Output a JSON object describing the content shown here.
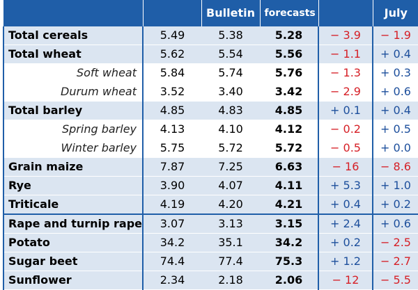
{
  "header": {
    "crop": "",
    "col1": "",
    "col2": "Bulletin",
    "col3": "forecasts",
    "col4": "",
    "col5": "July"
  },
  "rows": [
    {
      "crop": "Total cereals",
      "kind": "total",
      "v1": "5.49",
      "v2": "5.38",
      "v3": "5.28",
      "d1": "− 3.9",
      "d1s": "neg",
      "d2": "− 1.9",
      "d2s": "neg"
    },
    {
      "crop": "Total wheat",
      "kind": "total",
      "v1": "5.62",
      "v2": "5.54",
      "v3": "5.56",
      "d1": "− 1.1",
      "d1s": "neg",
      "d2": "+ 0.4",
      "d2s": "pos"
    },
    {
      "crop": "Soft wheat",
      "kind": "sub",
      "v1": "5.84",
      "v2": "5.74",
      "v3": "5.76",
      "d1": "− 1.3",
      "d1s": "neg",
      "d2": "+ 0.3",
      "d2s": "pos"
    },
    {
      "crop": "Durum wheat",
      "kind": "sub",
      "v1": "3.52",
      "v2": "3.40",
      "v3": "3.42",
      "d1": "− 2.9",
      "d1s": "neg",
      "d2": "+ 0.6",
      "d2s": "pos"
    },
    {
      "crop": "Total barley",
      "kind": "total",
      "v1": "4.85",
      "v2": "4.83",
      "v3": "4.85",
      "d1": "+ 0.1",
      "d1s": "pos",
      "d2": "+ 0.4",
      "d2s": "pos"
    },
    {
      "crop": "Spring barley",
      "kind": "sub",
      "v1": "4.13",
      "v2": "4.10",
      "v3": "4.12",
      "d1": "− 0.2",
      "d1s": "neg",
      "d2": "+ 0.5",
      "d2s": "pos"
    },
    {
      "crop": "Winter barley",
      "kind": "sub",
      "v1": "5.75",
      "v2": "5.72",
      "v3": "5.72",
      "d1": "− 0.5",
      "d1s": "neg",
      "d2": "+ 0.0",
      "d2s": "pos"
    },
    {
      "crop": "Grain maize",
      "kind": "total",
      "v1": "7.87",
      "v2": "7.25",
      "v3": "6.63",
      "d1": "− 16",
      "d1s": "neg",
      "d2": "− 8.6",
      "d2s": "neg"
    },
    {
      "crop": "Rye",
      "kind": "total",
      "v1": "3.90",
      "v2": "4.07",
      "v3": "4.11",
      "d1": "+ 5.3",
      "d1s": "pos",
      "d2": "+ 1.0",
      "d2s": "pos"
    },
    {
      "crop": "Triticale",
      "kind": "total",
      "v1": "4.19",
      "v2": "4.20",
      "v3": "4.21",
      "d1": "+ 0.4",
      "d1s": "pos",
      "d2": "+ 0.2",
      "d2s": "pos"
    },
    {
      "crop": "Rape and turnip rape",
      "kind": "total",
      "v1": "3.07",
      "v2": "3.13",
      "v3": "3.15",
      "d1": "+ 2.4",
      "d1s": "pos",
      "d2": "+ 0.6",
      "d2s": "pos"
    },
    {
      "crop": "Potato",
      "kind": "total",
      "v1": "34.2",
      "v2": "35.1",
      "v3": "34.2",
      "d1": "+ 0.2",
      "d1s": "pos",
      "d2": "− 2.5",
      "d2s": "neg"
    },
    {
      "crop": "Sugar beet",
      "kind": "total",
      "v1": "74.4",
      "v2": "77.4",
      "v3": "75.3",
      "d1": "+ 1.2",
      "d1s": "pos",
      "d2": "− 2.7",
      "d2s": "neg"
    },
    {
      "crop": "Sunflower",
      "kind": "total",
      "v1": "2.34",
      "v2": "2.18",
      "v3": "2.06",
      "d1": "− 12",
      "d1s": "neg",
      "d2": "− 5.5",
      "d2s": "neg"
    }
  ],
  "colors": {
    "header_bg": "#1f5ea8",
    "row_shade": "#dbe5f1",
    "negative": "#d61f26",
    "positive": "#1d4f9c"
  }
}
